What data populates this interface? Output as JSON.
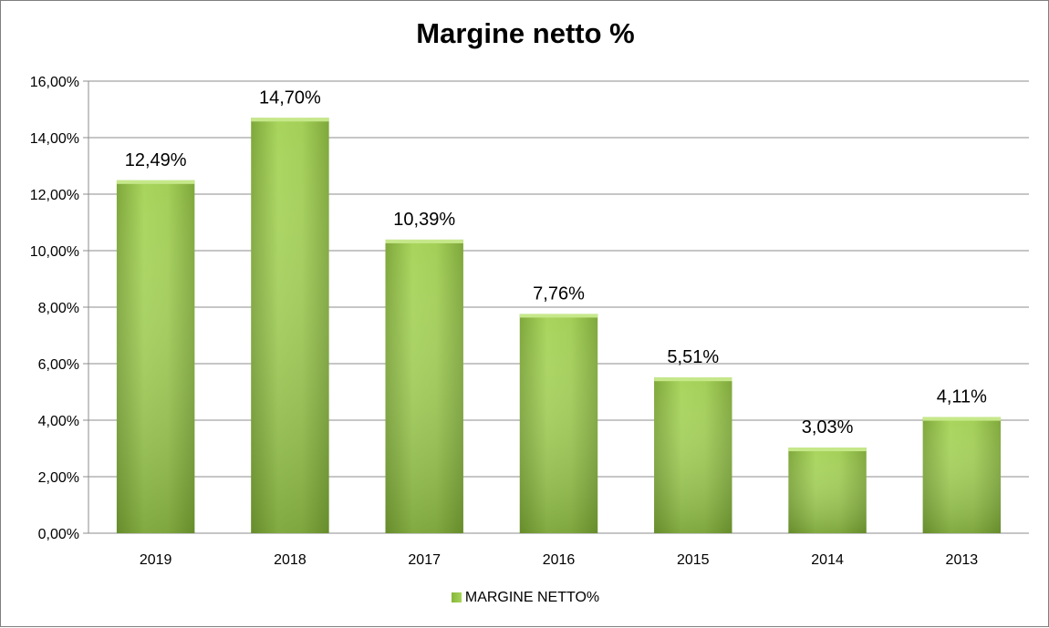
{
  "chart_data": {
    "type": "bar",
    "title": "Margine netto %",
    "categories": [
      "2019",
      "2018",
      "2017",
      "2016",
      "2015",
      "2014",
      "2013"
    ],
    "series": [
      {
        "name": "MARGINE NETTO%",
        "values": [
          12.49,
          14.7,
          10.39,
          7.76,
          5.51,
          3.03,
          4.11
        ],
        "labels": [
          "12,49%",
          "14,70%",
          "10,39%",
          "7,76%",
          "5,51%",
          "3,03%",
          "4,11%"
        ]
      }
    ],
    "ylim": [
      0,
      16
    ],
    "yticks": [
      0,
      2,
      4,
      6,
      8,
      10,
      12,
      14,
      16
    ],
    "ytick_labels": [
      "0,00%",
      "2,00%",
      "4,00%",
      "6,00%",
      "8,00%",
      "10,00%",
      "12,00%",
      "14,00%",
      "16,00%"
    ],
    "xlabel": "",
    "ylabel": "",
    "grid": true,
    "legend_position": "bottom",
    "colors": {
      "bar_light": "#a8d55c",
      "bar_dark": "#6f9a2c",
      "bar_top": "#c6e88a",
      "grid": "#8c8c8c"
    }
  }
}
